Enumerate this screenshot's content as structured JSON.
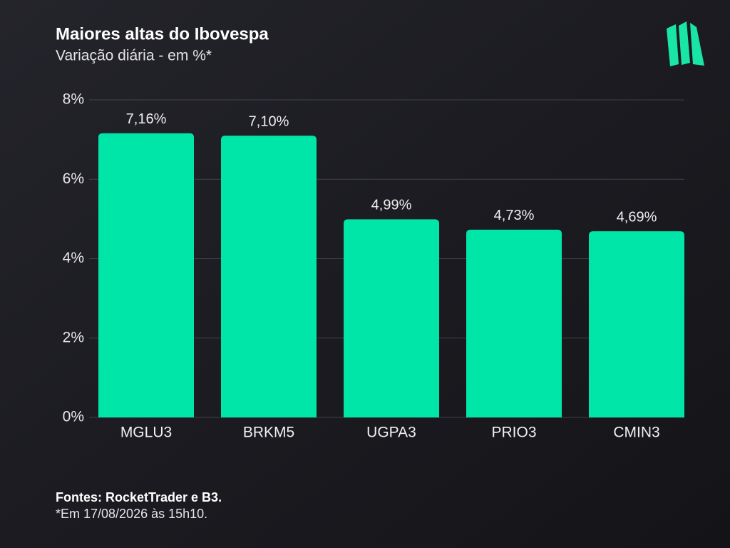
{
  "chart_data": {
    "type": "bar",
    "title": "Maiores altas do Ibovespa",
    "subtitle": "Variação diária - em %*",
    "source": "Fontes: RocketTrader e B3.",
    "note": "*Em 17/08/2026 às 15h10.",
    "categories": [
      "MGLU3",
      "BRKM5",
      "UGPA3",
      "PRIO3",
      "CMIN3"
    ],
    "values": [
      7.16,
      7.1,
      4.99,
      4.73,
      4.69
    ],
    "value_labels": [
      "7,16%",
      "7,10%",
      "4,99%",
      "4,73%",
      "4,69%"
    ],
    "color": "#00e5a8",
    "ylim": [
      0,
      8
    ],
    "yticks": [
      {
        "value": 0,
        "label": "0%"
      },
      {
        "value": 2,
        "label": "2%"
      },
      {
        "value": 4,
        "label": "4%"
      },
      {
        "value": 6,
        "label": "6%"
      },
      {
        "value": 8,
        "label": "8%"
      }
    ],
    "grid": true
  }
}
